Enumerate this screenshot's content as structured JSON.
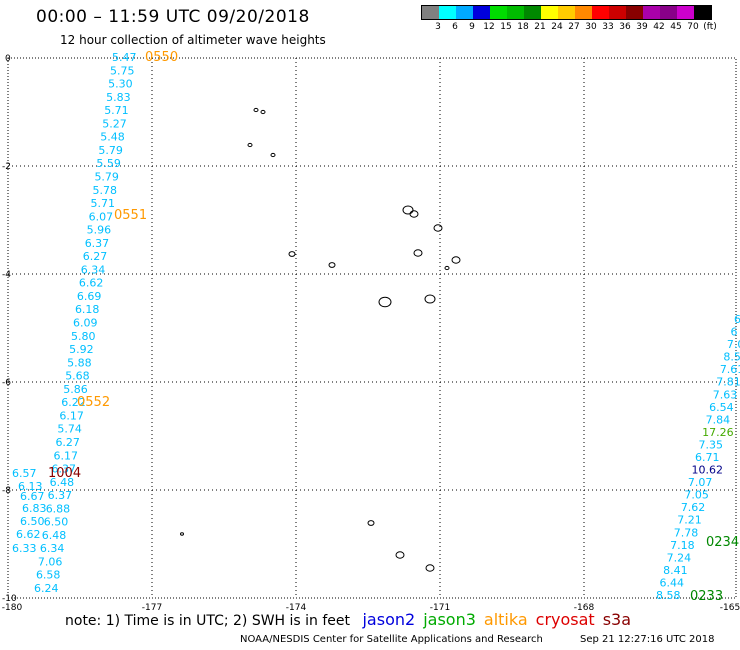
{
  "header": {
    "title": "00:00 – 11:59 UTC 09/20/2018",
    "subtitle": "12 hour collection of altimeter wave heights"
  },
  "legend": {
    "colors": [
      "#808080",
      "#00ffff",
      "#00aaff",
      "#0000dd",
      "#00dd00",
      "#00bb00",
      "#008800",
      "#ffff00",
      "#ffcc00",
      "#ff8800",
      "#ff0000",
      "#cc0000",
      "#880000",
      "#aa00aa",
      "#880088",
      "#cc00cc",
      "#000000"
    ],
    "ticks": [
      "3",
      "6",
      "9",
      "12",
      "15",
      "18",
      "21",
      "24",
      "27",
      "30",
      "33",
      "36",
      "39",
      "42",
      "45",
      "70",
      "(ft)"
    ]
  },
  "axes": {
    "x_ticks": [
      "-180",
      "-177",
      "-174",
      "-171",
      "-168",
      "-165"
    ],
    "y_ticks": [
      "0",
      "-2",
      "-4",
      "-6",
      "-8",
      "-10"
    ]
  },
  "tracks": {
    "left_diagonal": {
      "color": "#00bfff",
      "values": [
        "5.47",
        "5.75",
        "5.30",
        "5.83",
        "5.71",
        "5.27",
        "5.48",
        "5.79",
        "5.59",
        "5.79",
        "5.78",
        "5.71",
        "6.07",
        "5.96",
        "6.37",
        "6.27",
        "6.34",
        "6.62",
        "6.69",
        "6.18",
        "6.09",
        "5.80",
        "5.92",
        "5.88",
        "5.68",
        "5.86",
        "6.22",
        "6.17",
        "5.74",
        "6.27",
        "6.17",
        "6.37",
        "6.48",
        "6.37",
        "6.88",
        "6.50",
        "6.48",
        "6.34",
        "7.06",
        "6.58",
        "6.24"
      ]
    },
    "left_cluster": {
      "color": "#00bfff",
      "values": [
        "6.57",
        "6.13",
        "6.67",
        "6.83",
        "6.50",
        "6.62",
        "6.33"
      ]
    },
    "right_diagonal": {
      "color": "#00bfff",
      "values": [
        "6",
        "6",
        "7.0",
        "8.5",
        "7.61",
        "7.81",
        "7.63",
        "6.54",
        "7.84",
        "17.26",
        "7.35",
        "6.71",
        "10.62",
        "7.07",
        "7.05",
        "7.62",
        "7.21",
        "7.78",
        "7.18",
        "7.24",
        "8.41",
        "6.44",
        "8.58"
      ]
    }
  },
  "time_labels": [
    {
      "text": "0550",
      "color": "#ff9900"
    },
    {
      "text": "0551",
      "color": "#ff9900"
    },
    {
      "text": "0552",
      "color": "#ff9900"
    },
    {
      "text": "1004",
      "color": "#880000"
    },
    {
      "text": "0234",
      "color": "#008800"
    },
    {
      "text": "0233",
      "color": "#008800"
    }
  ],
  "footer": {
    "note": "note: 1) Time is in UTC; 2) SWH is in feet",
    "satellites": [
      {
        "name": "jason2",
        "color": "#0000dd"
      },
      {
        "name": "jason3",
        "color": "#00aa00"
      },
      {
        "name": "altika",
        "color": "#ff9900"
      },
      {
        "name": "cryosat",
        "color": "#dd0000"
      },
      {
        "name": "s3a",
        "color": "#880000"
      }
    ],
    "credits": "NOAA/NESDIS Center for Satellite Applications and Research",
    "timestamp": "Sep 21 12:27:16 UTC 2018"
  }
}
